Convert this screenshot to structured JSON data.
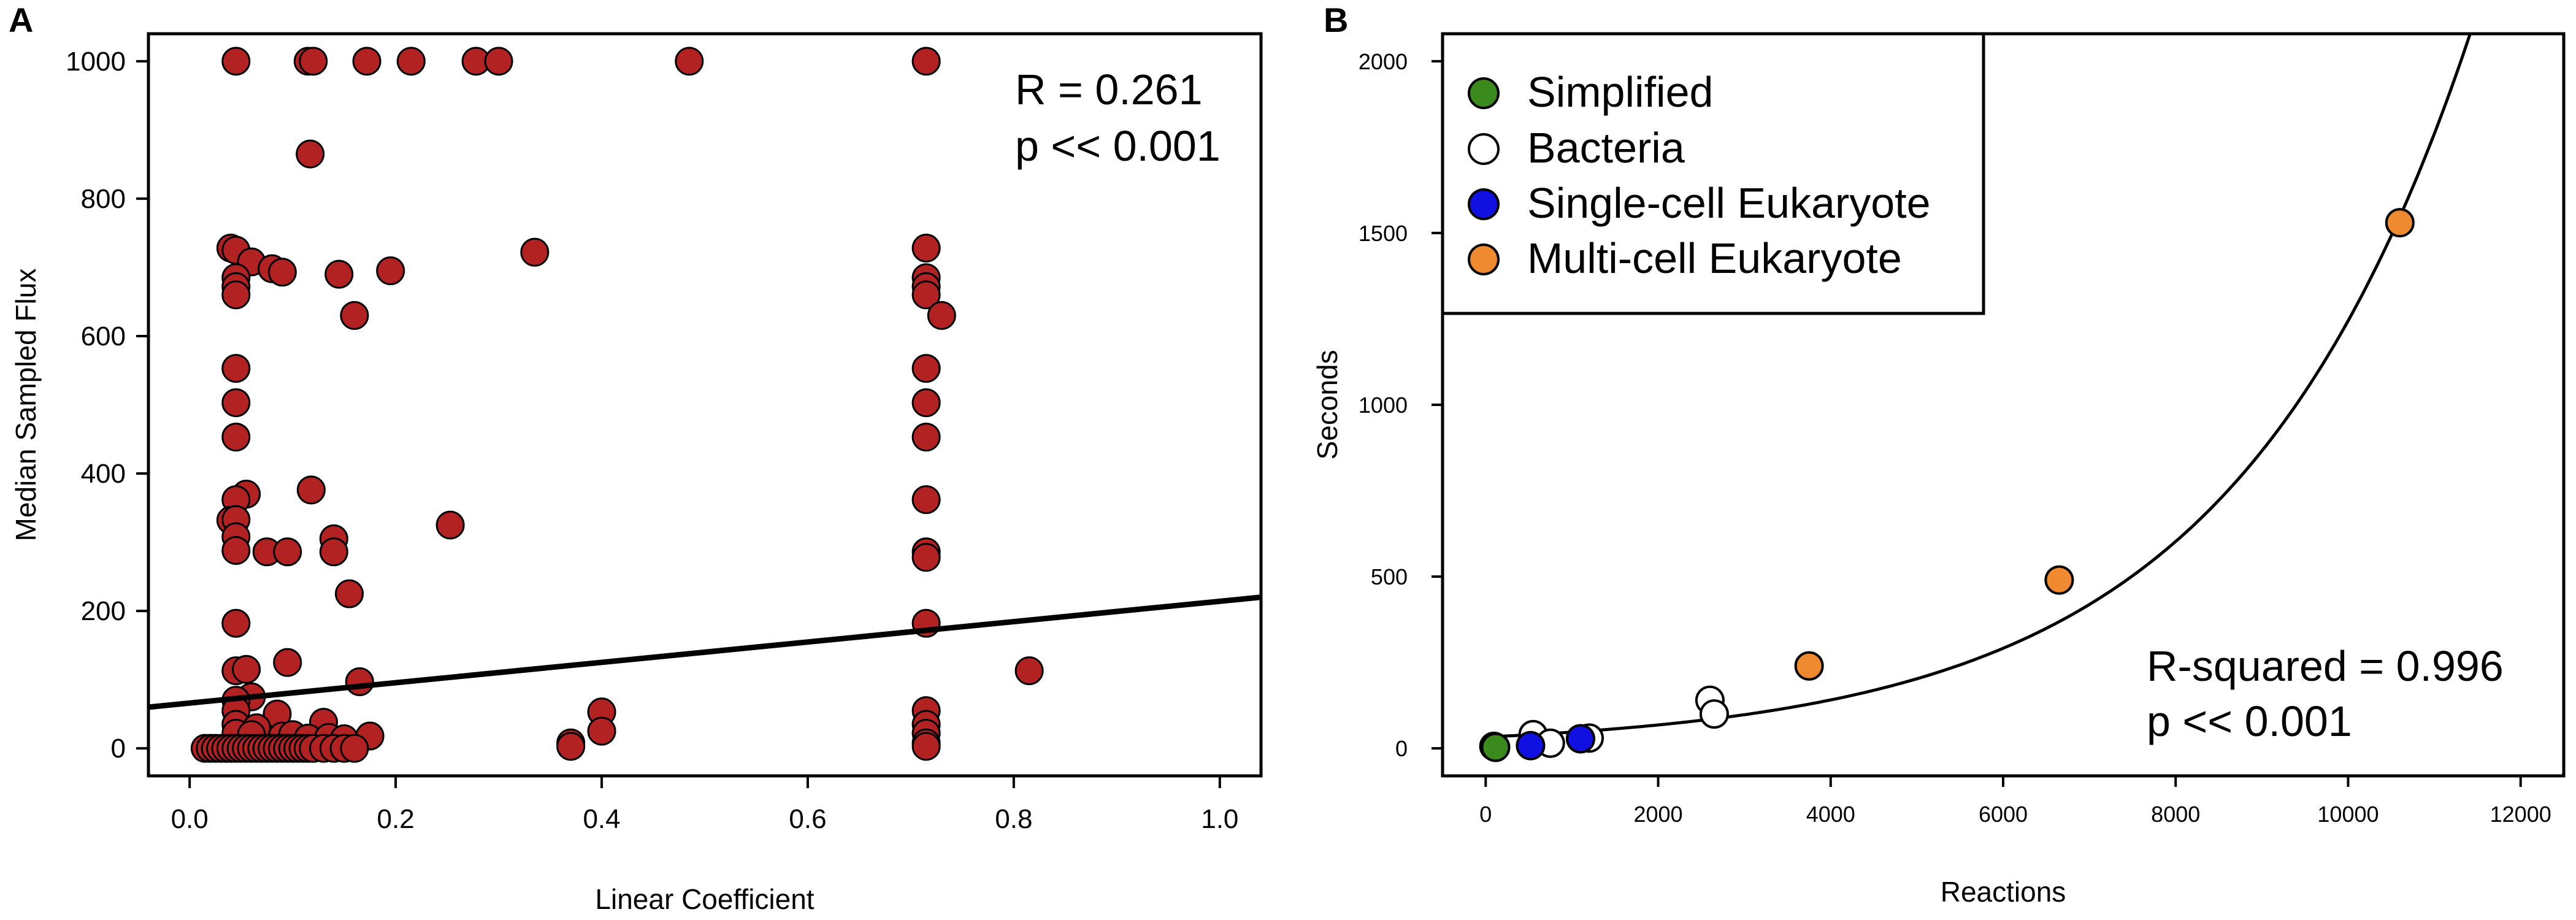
{
  "chart_data": [
    {
      "panel_label": "A",
      "type": "scatter",
      "xlabel": "Linear Coefficient",
      "ylabel": "Median Sampled Flux",
      "xlim": [
        -0.04,
        1.04
      ],
      "ylim": [
        -40,
        1040
      ],
      "xticks": [
        "0.0",
        "0.2",
        "0.4",
        "0.6",
        "0.8",
        "1.0"
      ],
      "yticks": [
        "0",
        "200",
        "400",
        "600",
        "800",
        "1000"
      ],
      "point_color": "#b22222",
      "annotation": [
        "R = 0.261",
        "p << 0.001"
      ],
      "fit_line": {
        "x": [
          -0.04,
          1.04
        ],
        "y": [
          60,
          220
        ]
      },
      "points": [
        [
          0.045,
          1000
        ],
        [
          0.115,
          1000
        ],
        [
          0.12,
          1000
        ],
        [
          0.172,
          1000
        ],
        [
          0.215,
          1000
        ],
        [
          0.278,
          1000
        ],
        [
          0.3,
          1000
        ],
        [
          0.485,
          1000
        ],
        [
          0.715,
          1000
        ],
        [
          0.117,
          865
        ],
        [
          0.04,
          728
        ],
        [
          0.045,
          725
        ],
        [
          0.06,
          708
        ],
        [
          0.08,
          698
        ],
        [
          0.09,
          693
        ],
        [
          0.145,
          690
        ],
        [
          0.195,
          695
        ],
        [
          0.335,
          722
        ],
        [
          0.045,
          685
        ],
        [
          0.045,
          672
        ],
        [
          0.045,
          660
        ],
        [
          0.16,
          630
        ],
        [
          0.715,
          728
        ],
        [
          0.715,
          685
        ],
        [
          0.715,
          672
        ],
        [
          0.715,
          660
        ],
        [
          0.73,
          630
        ],
        [
          0.045,
          553
        ],
        [
          0.045,
          503
        ],
        [
          0.045,
          453
        ],
        [
          0.055,
          370
        ],
        [
          0.045,
          362
        ],
        [
          0.118,
          376
        ],
        [
          0.04,
          332
        ],
        [
          0.045,
          333
        ],
        [
          0.045,
          308
        ],
        [
          0.045,
          288
        ],
        [
          0.075,
          286
        ],
        [
          0.095,
          286
        ],
        [
          0.14,
          305
        ],
        [
          0.14,
          286
        ],
        [
          0.253,
          325
        ],
        [
          0.715,
          553
        ],
        [
          0.715,
          503
        ],
        [
          0.715,
          453
        ],
        [
          0.715,
          362
        ],
        [
          0.715,
          286
        ],
        [
          0.715,
          278
        ],
        [
          0.155,
          225
        ],
        [
          0.045,
          182
        ],
        [
          0.095,
          125
        ],
        [
          0.045,
          113
        ],
        [
          0.055,
          115
        ],
        [
          0.165,
          97
        ],
        [
          0.815,
          113
        ],
        [
          0.715,
          182
        ],
        [
          0.06,
          75
        ],
        [
          0.045,
          70
        ],
        [
          0.045,
          55
        ],
        [
          0.085,
          50
        ],
        [
          0.045,
          35
        ],
        [
          0.065,
          30
        ],
        [
          0.13,
          38
        ],
        [
          0.045,
          22
        ],
        [
          0.06,
          20
        ],
        [
          0.09,
          18
        ],
        [
          0.1,
          20
        ],
        [
          0.115,
          15
        ],
        [
          0.135,
          16
        ],
        [
          0.15,
          14
        ],
        [
          0.175,
          18
        ],
        [
          0.4,
          53
        ],
        [
          0.4,
          25
        ],
        [
          0.37,
          8
        ],
        [
          0.37,
          3
        ],
        [
          0.715,
          55
        ],
        [
          0.715,
          35
        ],
        [
          0.715,
          22
        ],
        [
          0.715,
          8
        ],
        [
          0.715,
          3
        ],
        [
          0.015,
          0
        ],
        [
          0.02,
          0
        ],
        [
          0.025,
          0
        ],
        [
          0.03,
          0
        ],
        [
          0.035,
          0
        ],
        [
          0.04,
          0
        ],
        [
          0.045,
          0
        ],
        [
          0.05,
          0
        ],
        [
          0.055,
          0
        ],
        [
          0.06,
          0
        ],
        [
          0.065,
          0
        ],
        [
          0.07,
          0
        ],
        [
          0.075,
          0
        ],
        [
          0.08,
          0
        ],
        [
          0.085,
          0
        ],
        [
          0.09,
          0
        ],
        [
          0.095,
          0
        ],
        [
          0.1,
          0
        ],
        [
          0.105,
          0
        ],
        [
          0.11,
          0
        ],
        [
          0.115,
          0
        ],
        [
          0.12,
          0
        ],
        [
          0.13,
          0
        ],
        [
          0.14,
          0
        ],
        [
          0.15,
          0
        ],
        [
          0.16,
          0
        ]
      ]
    },
    {
      "panel_label": "B",
      "type": "scatter",
      "xlabel": "Reactions",
      "ylabel": "Seconds",
      "xlim": [
        -500,
        12500
      ],
      "ylim": [
        -80,
        2080
      ],
      "xticks": [
        "0",
        "2000",
        "4000",
        "6000",
        "8000",
        "10000",
        "12000"
      ],
      "yticks": [
        "0",
        "500",
        "1000",
        "1500",
        "2000"
      ],
      "annotation": [
        "R-squared = 0.996",
        "p << 0.001"
      ],
      "legend": {
        "position": "top-left",
        "entries": [
          {
            "label": "Simplified",
            "color": "#3a8a1e"
          },
          {
            "label": "Bacteria",
            "color": "#ffffff"
          },
          {
            "label": "Single-cell Eukaryote",
            "color": "#1010e0"
          },
          {
            "label": "Multi-cell Eukaryote",
            "color": "#f08a30"
          }
        ]
      },
      "series": [
        {
          "label": "Simplified",
          "color": "#3a8a1e",
          "x": [
            95,
            115
          ],
          "y": [
            6,
            3
          ]
        },
        {
          "label": "Bacteria",
          "color": "#ffffff",
          "x": [
            550,
            750,
            1200,
            2600,
            2650
          ],
          "y": [
            40,
            15,
            30,
            140,
            100
          ]
        },
        {
          "label": "Single-cell Eukaryote",
          "color": "#1010e0",
          "x": [
            520,
            1100
          ],
          "y": [
            8,
            28
          ]
        },
        {
          "label": "Multi-cell Eukaryote",
          "color": "#f08a30",
          "x": [
            3750,
            6650,
            10600
          ],
          "y": [
            240,
            490,
            1530
          ]
        }
      ],
      "fit_curve": {
        "model": "exponential",
        "a": 33.0,
        "b": 0.000363,
        "x_range": [
          0,
          12000
        ]
      }
    }
  ]
}
